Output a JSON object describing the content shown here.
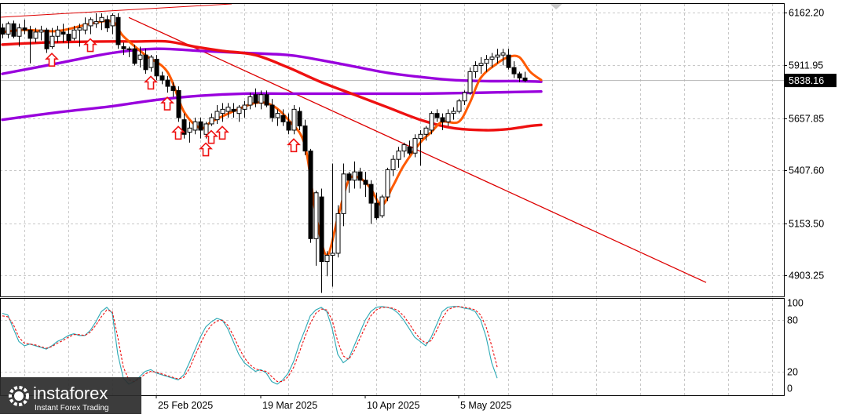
{
  "chart_data": [
    {
      "type": "candlestick",
      "price_axis": {
        "ticks": [
          "6162.20",
          "5911.95",
          "5657.85",
          "5407.60",
          "5153.50",
          "4903.25"
        ],
        "tick_values": [
          6162.2,
          5911.95,
          5657.85,
          5407.6,
          5153.5,
          4903.25
        ],
        "ylim": [
          4803,
          6205
        ]
      },
      "current_price": {
        "label": "5838.16",
        "value": 5838.16
      },
      "date_axis": {
        "labels": [
          "25 Feb 2025",
          "19 Mar 2025",
          "10 Apr 2025",
          "5 May 2025"
        ],
        "label_bar_index": [
          28,
          47,
          66,
          83
        ]
      },
      "candles_ohlc": [
        [
          6090,
          6110,
          6040,
          6060
        ],
        [
          6060,
          6120,
          6040,
          6110
        ],
        [
          6110,
          6125,
          6040,
          6050
        ],
        [
          6050,
          6110,
          6000,
          6090
        ],
        [
          6090,
          6130,
          6060,
          6080
        ],
        [
          6080,
          6100,
          5920,
          6040
        ],
        [
          6040,
          6090,
          6020,
          6070
        ],
        [
          6070,
          6100,
          6030,
          6080
        ],
        [
          6080,
          6090,
          5970,
          5990
        ],
        [
          6000,
          6090,
          5990,
          6050
        ],
        [
          6050,
          6100,
          6020,
          6080
        ],
        [
          6070,
          6110,
          6020,
          6060
        ],
        [
          6060,
          6090,
          5990,
          6030
        ],
        [
          6040,
          6100,
          6030,
          6080
        ],
        [
          6080,
          6110,
          6000,
          6090
        ],
        [
          6080,
          6140,
          6060,
          6110
        ],
        [
          6100,
          6140,
          6060,
          6130
        ],
        [
          6110,
          6160,
          6090,
          6120
        ],
        [
          6120,
          6160,
          6080,
          6140
        ],
        [
          6130,
          6150,
          6070,
          6090
        ],
        [
          6100,
          6160,
          6060,
          6150
        ],
        [
          6140,
          6160,
          5990,
          6010
        ],
        [
          6000,
          6020,
          5960,
          5990
        ],
        [
          5990,
          6000,
          5950,
          5990
        ],
        [
          5990,
          6010,
          5910,
          5920
        ],
        [
          5940,
          6000,
          5900,
          5960
        ],
        [
          5960,
          5990,
          5870,
          5890
        ],
        [
          5900,
          5960,
          5880,
          5950
        ],
        [
          5940,
          5960,
          5840,
          5860
        ],
        [
          5860,
          5880,
          5820,
          5840
        ],
        [
          5840,
          5860,
          5780,
          5810
        ],
        [
          5810,
          5830,
          5760,
          5790
        ],
        [
          5790,
          5810,
          5640,
          5660
        ],
        [
          5650,
          5680,
          5560,
          5580
        ],
        [
          5590,
          5640,
          5540,
          5610
        ],
        [
          5600,
          5660,
          5580,
          5640
        ],
        [
          5640,
          5660,
          5560,
          5600
        ],
        [
          5580,
          5640,
          5560,
          5630
        ],
        [
          5630,
          5680,
          5620,
          5660
        ],
        [
          5650,
          5720,
          5630,
          5690
        ],
        [
          5680,
          5730,
          5640,
          5700
        ],
        [
          5690,
          5730,
          5660,
          5710
        ],
        [
          5700,
          5730,
          5660,
          5690
        ],
        [
          5680,
          5720,
          5640,
          5710
        ],
        [
          5700,
          5740,
          5660,
          5720
        ],
        [
          5720,
          5780,
          5700,
          5760
        ],
        [
          5770,
          5800,
          5710,
          5730
        ],
        [
          5730,
          5790,
          5700,
          5770
        ],
        [
          5770,
          5790,
          5710,
          5720
        ],
        [
          5720,
          5750,
          5640,
          5660
        ],
        [
          5660,
          5700,
          5620,
          5680
        ],
        [
          5670,
          5700,
          5620,
          5640
        ],
        [
          5640,
          5680,
          5580,
          5600
        ],
        [
          5600,
          5720,
          5580,
          5700
        ],
        [
          5690,
          5710,
          5600,
          5620
        ],
        [
          5620,
          5650,
          5480,
          5500
        ],
        [
          5500,
          5510,
          5060,
          5080
        ],
        [
          5080,
          5310,
          4950,
          5300
        ],
        [
          5280,
          5320,
          4820,
          4970
        ],
        [
          4970,
          5020,
          4900,
          5000
        ],
        [
          5000,
          5440,
          4850,
          5010
        ],
        [
          5010,
          5240,
          4990,
          5200
        ],
        [
          5200,
          5440,
          5140,
          5390
        ],
        [
          5390,
          5400,
          5300,
          5360
        ],
        [
          5360,
          5450,
          5320,
          5400
        ],
        [
          5400,
          5420,
          5320,
          5360
        ],
        [
          5360,
          5400,
          5280,
          5340
        ],
        [
          5340,
          5360,
          5150,
          5250
        ],
        [
          5250,
          5300,
          5170,
          5180
        ],
        [
          5190,
          5290,
          5180,
          5280
        ],
        [
          5280,
          5420,
          5260,
          5410
        ],
        [
          5410,
          5480,
          5380,
          5460
        ],
        [
          5460,
          5520,
          5420,
          5500
        ],
        [
          5500,
          5540,
          5470,
          5530
        ],
        [
          5520,
          5550,
          5480,
          5490
        ],
        [
          5490,
          5580,
          5470,
          5560
        ],
        [
          5560,
          5600,
          5430,
          5580
        ],
        [
          5580,
          5620,
          5550,
          5610
        ],
        [
          5600,
          5690,
          5580,
          5680
        ],
        [
          5680,
          5700,
          5640,
          5660
        ],
        [
          5660,
          5680,
          5600,
          5640
        ],
        [
          5640,
          5700,
          5620,
          5680
        ],
        [
          5680,
          5710,
          5650,
          5690
        ],
        [
          5690,
          5750,
          5680,
          5740
        ],
        [
          5740,
          5790,
          5720,
          5780
        ],
        [
          5780,
          5900,
          5770,
          5880
        ],
        [
          5880,
          5930,
          5850,
          5910
        ],
        [
          5910,
          5950,
          5870,
          5920
        ],
        [
          5920,
          5960,
          5880,
          5940
        ],
        [
          5940,
          5970,
          5900,
          5950
        ],
        [
          5950,
          5990,
          5920,
          5960
        ],
        [
          5960,
          5990,
          5910,
          5970
        ],
        [
          5960,
          5990,
          5890,
          5900
        ],
        [
          5900,
          5930,
          5850,
          5870
        ],
        [
          5870,
          5880,
          5830,
          5850
        ],
        [
          5850,
          5880,
          5830,
          5838
        ]
      ],
      "moving_averages": [
        {
          "color": "#ff5a00",
          "points": [
            [
              0,
              6070
            ],
            [
              4,
              6080
            ],
            [
              10,
              6075
            ],
            [
              16,
              6110
            ],
            [
              20,
              6120
            ],
            [
              22,
              6050
            ],
            [
              26,
              5960
            ],
            [
              30,
              5880
            ],
            [
              33,
              5690
            ],
            [
              36,
              5610
            ],
            [
              38,
              5640
            ],
            [
              42,
              5690
            ],
            [
              46,
              5730
            ],
            [
              49,
              5720
            ],
            [
              52,
              5650
            ],
            [
              55,
              5530
            ],
            [
              57,
              5200
            ],
            [
              59,
              5000
            ],
            [
              61,
              5180
            ],
            [
              63,
              5360
            ],
            [
              65,
              5370
            ],
            [
              67,
              5320
            ],
            [
              69,
              5240
            ],
            [
              71,
              5330
            ],
            [
              73,
              5430
            ],
            [
              76,
              5540
            ],
            [
              78,
              5590
            ],
            [
              80,
              5640
            ],
            [
              83,
              5640
            ],
            [
              85,
              5730
            ],
            [
              87,
              5850
            ],
            [
              90,
              5920
            ],
            [
              92,
              5950
            ],
            [
              94,
              5950
            ],
            [
              96,
              5880
            ],
            [
              98,
              5840
            ]
          ]
        },
        {
          "color": "#ee1111",
          "points": [
            [
              0,
              6010
            ],
            [
              8,
              6020
            ],
            [
              18,
              6025
            ],
            [
              24,
              6025
            ],
            [
              30,
              6025
            ],
            [
              35,
              6000
            ],
            [
              40,
              5980
            ],
            [
              46,
              5960
            ],
            [
              52,
              5900
            ],
            [
              58,
              5830
            ],
            [
              64,
              5770
            ],
            [
              70,
              5710
            ],
            [
              76,
              5650
            ],
            [
              82,
              5610
            ],
            [
              88,
              5600
            ],
            [
              92,
              5605
            ],
            [
              96,
              5620
            ],
            [
              98,
              5625
            ]
          ]
        },
        {
          "color": "#9900dd",
          "points": [
            [
              0,
              5870
            ],
            [
              10,
              5920
            ],
            [
              20,
              5970
            ],
            [
              28,
              5990
            ],
            [
              36,
              5980
            ],
            [
              44,
              5970
            ],
            [
              52,
              5960
            ],
            [
              58,
              5935
            ],
            [
              64,
              5905
            ],
            [
              70,
              5875
            ],
            [
              76,
              5855
            ],
            [
              82,
              5840
            ],
            [
              88,
              5835
            ],
            [
              94,
              5835
            ],
            [
              98,
              5832
            ]
          ]
        },
        {
          "color": "#9900dd",
          "points": [
            [
              0,
              5650
            ],
            [
              10,
              5685
            ],
            [
              20,
              5715
            ],
            [
              28,
              5745
            ],
            [
              36,
              5765
            ],
            [
              44,
              5775
            ],
            [
              52,
              5775
            ],
            [
              60,
              5775
            ],
            [
              68,
              5775
            ],
            [
              76,
              5775
            ],
            [
              84,
              5778
            ],
            [
              92,
              5782
            ],
            [
              98,
              5785
            ]
          ]
        }
      ],
      "trendlines": [
        {
          "color": "#dd0000",
          "from": [
            23,
            6140
          ],
          "to": [
            128,
            4870
          ]
        }
      ],
      "arrow_markers_bar_index": [
        9,
        16,
        27,
        30,
        32,
        37,
        38,
        40,
        53
      ]
    },
    {
      "type": "line",
      "name": "stochastic",
      "yticks": [
        "100",
        "80",
        "20",
        "0"
      ],
      "ytick_values": [
        100,
        80,
        20,
        0
      ],
      "ylim": [
        -8,
        105
      ],
      "main": [
        88,
        86,
        70,
        55,
        50,
        52,
        50,
        48,
        46,
        50,
        55,
        58,
        62,
        64,
        62,
        62,
        68,
        78,
        90,
        95,
        88,
        40,
        12,
        5,
        8,
        14,
        20,
        22,
        18,
        16,
        14,
        12,
        10,
        16,
        30,
        45,
        60,
        72,
        78,
        82,
        80,
        70,
        55,
        40,
        30,
        25,
        20,
        22,
        18,
        8,
        5,
        10,
        18,
        32,
        52,
        68,
        85,
        92,
        95,
        90,
        70,
        40,
        30,
        35,
        50,
        65,
        80,
        90,
        95,
        96,
        95,
        93,
        88,
        80,
        70,
        60,
        55,
        50,
        60,
        75,
        90,
        95,
        96,
        96,
        94,
        93,
        90,
        80,
        60,
        30,
        12
      ],
      "signal": [
        85,
        84,
        75,
        60,
        53,
        52,
        51,
        49,
        47,
        49,
        53,
        56,
        60,
        63,
        63,
        62,
        66,
        74,
        84,
        92,
        90,
        60,
        25,
        10,
        8,
        12,
        17,
        20,
        19,
        17,
        15,
        13,
        11,
        13,
        23,
        38,
        52,
        65,
        74,
        79,
        80,
        74,
        62,
        48,
        36,
        28,
        23,
        21,
        20,
        14,
        8,
        8,
        14,
        25,
        42,
        60,
        76,
        88,
        93,
        92,
        80,
        55,
        38,
        34,
        44,
        58,
        72,
        85,
        92,
        95,
        95,
        94,
        91,
        85,
        76,
        66,
        58,
        53,
        56,
        68,
        82,
        92,
        95,
        96,
        95,
        94,
        92,
        86,
        72,
        50,
        25
      ]
    }
  ],
  "logo": {
    "brand": "instaforex",
    "tagline": "Instant Forex Trading"
  }
}
